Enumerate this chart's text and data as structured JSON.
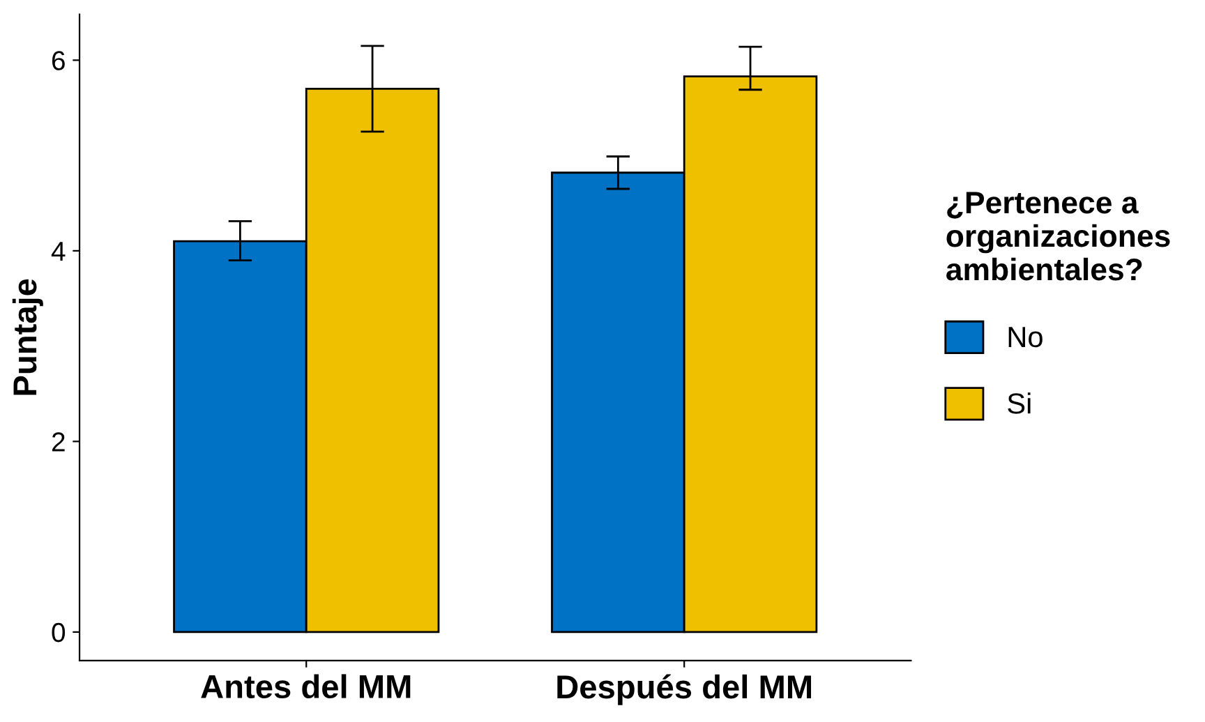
{
  "chart_data": {
    "type": "bar",
    "ylabel": "Puntaje",
    "legend_title": "¿Pertenece a\norganizaciones\nambientales?",
    "legend": "right",
    "categories": [
      "Antes del MM",
      "Después del MM"
    ],
    "series": [
      {
        "name": "No",
        "color": "#0072c6",
        "values": [
          4.1,
          4.82
        ],
        "errors": [
          [
            3.9,
            4.31
          ],
          [
            4.65,
            4.99
          ]
        ]
      },
      {
        "name": "Si",
        "color": "#efc000",
        "values": [
          5.7,
          5.83
        ],
        "errors": [
          [
            5.25,
            6.15
          ],
          [
            5.69,
            6.14
          ]
        ]
      }
    ],
    "ylim": [
      -0.3,
      6.48
    ],
    "yticks": [
      0,
      2,
      4,
      6
    ],
    "grid": false
  }
}
